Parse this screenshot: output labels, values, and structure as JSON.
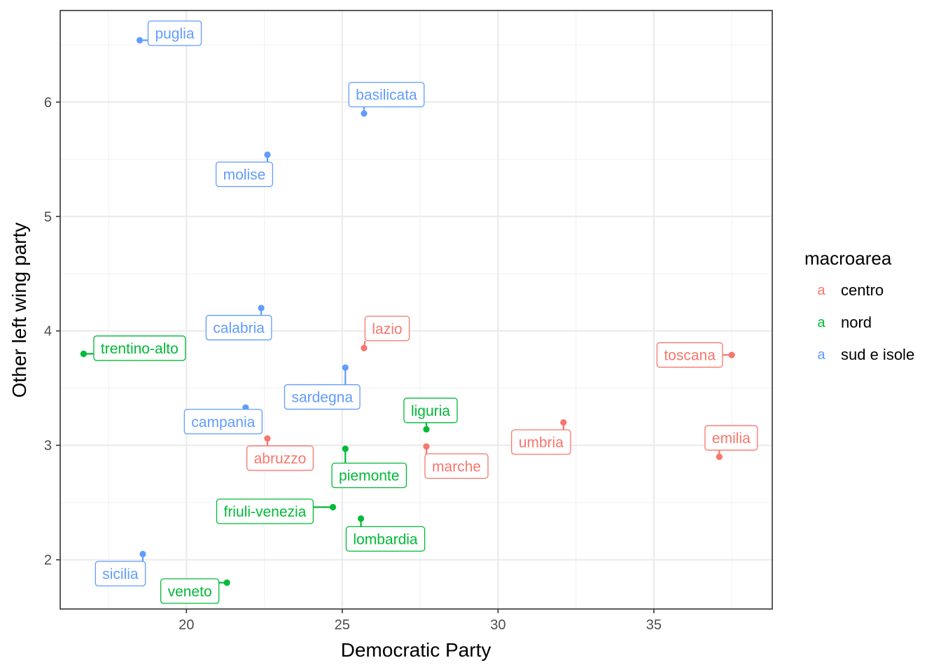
{
  "chart_data": {
    "type": "scatter",
    "xlabel": "Democratic Party",
    "ylabel": "Other left wing party",
    "xlim": [
      15.95,
      38.8
    ],
    "ylim": [
      1.57,
      6.8
    ],
    "xticks": [
      20,
      25,
      30,
      35
    ],
    "yticks": [
      2,
      3,
      4,
      5,
      6
    ],
    "grid": true,
    "legend": {
      "title": "macroarea",
      "position": "right",
      "key_glyph": "a",
      "entries": [
        {
          "name": "centro",
          "color": "#F8766D"
        },
        {
          "name": "nord",
          "color": "#00BA38"
        },
        {
          "name": "sud e isole",
          "color": "#619CFF"
        }
      ]
    },
    "series": [
      {
        "name": "centro",
        "color": "#F8766D",
        "points": [
          {
            "label": "lazio",
            "x": 25.7,
            "y": 3.85
          },
          {
            "label": "toscana",
            "x": 37.5,
            "y": 3.79
          },
          {
            "label": "umbria",
            "x": 32.1,
            "y": 3.2
          },
          {
            "label": "emilia",
            "x": 37.1,
            "y": 2.9
          },
          {
            "label": "abruzzo",
            "x": 22.6,
            "y": 3.06
          },
          {
            "label": "marche",
            "x": 27.7,
            "y": 2.99
          }
        ]
      },
      {
        "name": "nord",
        "color": "#00BA38",
        "points": [
          {
            "label": "trentino-alto",
            "x": 16.7,
            "y": 3.8
          },
          {
            "label": "liguria",
            "x": 27.7,
            "y": 3.14
          },
          {
            "label": "piemonte",
            "x": 25.1,
            "y": 2.97
          },
          {
            "label": "friuli-venezia",
            "x": 24.7,
            "y": 2.46
          },
          {
            "label": "lombardia",
            "x": 25.6,
            "y": 2.36
          },
          {
            "label": "veneto",
            "x": 21.3,
            "y": 1.8
          }
        ]
      },
      {
        "name": "sud e isole",
        "color": "#619CFF",
        "points": [
          {
            "label": "puglia",
            "x": 18.5,
            "y": 6.54
          },
          {
            "label": "basilicata",
            "x": 25.7,
            "y": 5.9
          },
          {
            "label": "molise",
            "x": 22.6,
            "y": 5.54
          },
          {
            "label": "calabria",
            "x": 22.4,
            "y": 4.2
          },
          {
            "label": "sardegna",
            "x": 25.1,
            "y": 3.68
          },
          {
            "label": "campania",
            "x": 21.9,
            "y": 3.33
          },
          {
            "label": "sicilia",
            "x": 18.6,
            "y": 2.05
          }
        ]
      }
    ]
  }
}
